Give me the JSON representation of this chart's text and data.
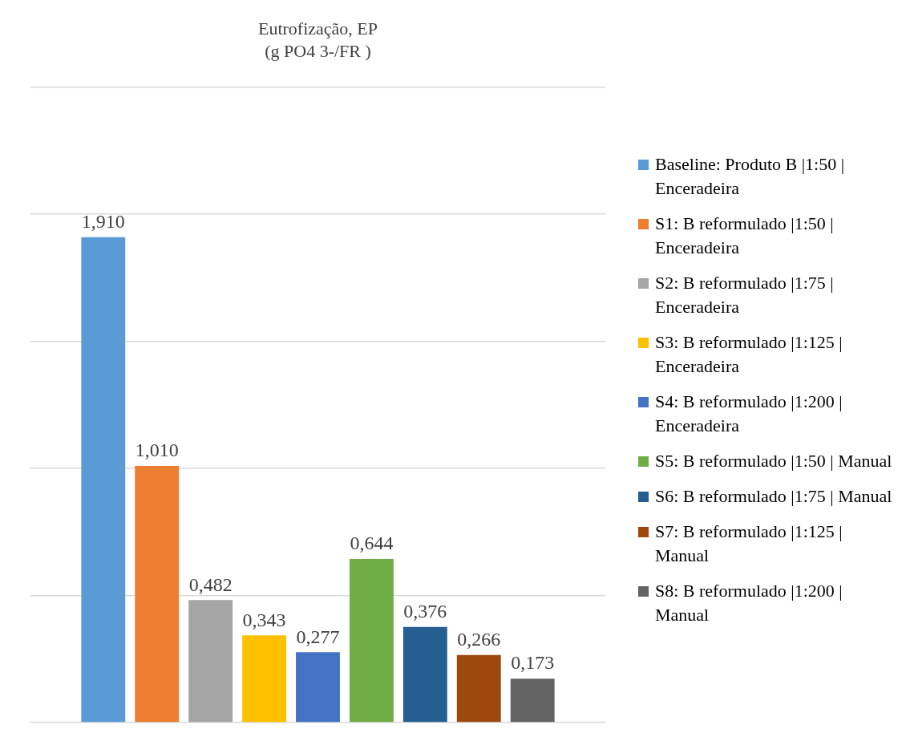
{
  "chart_data": {
    "type": "bar",
    "title": "Eutrofização, EP",
    "subtitle": "(g PO4 3-/FR )",
    "categories": [
      null
    ],
    "ylim": [
      0,
      2.5
    ],
    "yticks": [
      {
        "value": 0,
        "label": null
      },
      {
        "value": 0.5,
        "label": null
      },
      {
        "value": 1,
        "label": null
      },
      {
        "value": 1.5,
        "label": null
      },
      {
        "value": 2,
        "label": null
      },
      {
        "value": 2.5,
        "label": null
      }
    ],
    "grid": "y",
    "tick_labels": false,
    "legend": "right",
    "series": [
      {
        "name": "Baseline: Produto B |1:50 | Enceradeira",
        "color": "#5b9bd5",
        "values": [
          1.91
        ],
        "value_labels": [
          "1,910"
        ]
      },
      {
        "name": "S1: B reformulado |1:50 | Enceradeira",
        "color": "#ed7d31",
        "values": [
          1.01
        ],
        "value_labels": [
          "1,010"
        ]
      },
      {
        "name": "S2: B reformulado |1:75 | Enceradeira",
        "color": "#a5a5a5",
        "values": [
          0.482
        ],
        "value_labels": [
          "0,482"
        ]
      },
      {
        "name": "S3: B reformulado |1:125 | Enceradeira",
        "color": "#ffc000",
        "values": [
          0.343
        ],
        "value_labels": [
          "0,343"
        ]
      },
      {
        "name": "S4: B reformulado |1:200 | Enceradeira",
        "color": "#4472c4",
        "values": [
          0.277
        ],
        "value_labels": [
          "0,277"
        ]
      },
      {
        "name": "S5: B reformulado |1:50 | Manual",
        "color": "#70ad47",
        "values": [
          0.644
        ],
        "value_labels": [
          "0,644"
        ]
      },
      {
        "name": "S6: B reformulado |1:75 | Manual",
        "color": "#255e91",
        "values": [
          0.376
        ],
        "value_labels": [
          "0,376"
        ]
      },
      {
        "name": "S7: B reformulado |1:125 | Manual",
        "color": "#9e480e",
        "values": [
          0.266
        ],
        "value_labels": [
          "0,266"
        ]
      },
      {
        "name": "S8: B reformulado |1:200 | Manual",
        "color": "#636363",
        "values": [
          0.173
        ],
        "value_labels": [
          "0,173"
        ]
      }
    ]
  }
}
